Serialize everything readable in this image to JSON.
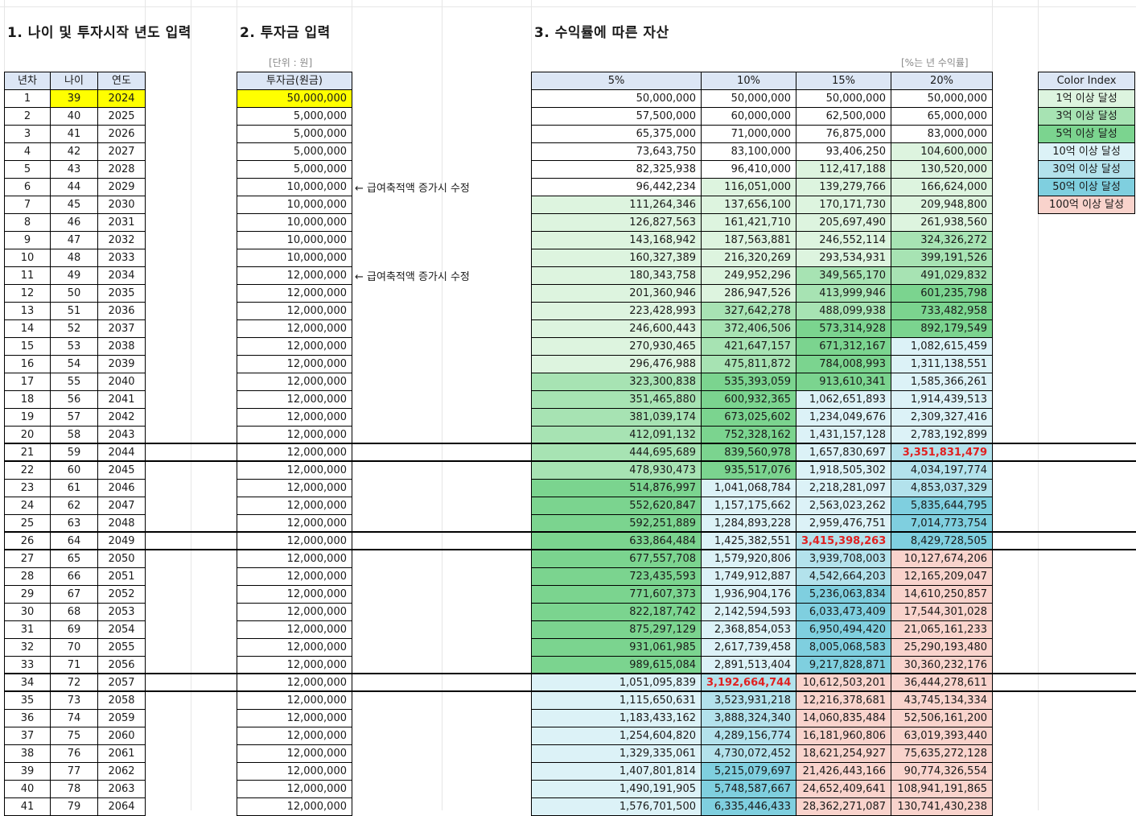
{
  "sections": {
    "s1_title": "1. 나이 및 투자시작 년도 입력",
    "s2_title": "2. 투자금 입력",
    "s3_title": "3. 수익률에 따른 자산",
    "s2_unit": "[단위 : 원]",
    "s3_unit": "[%는 년 수익률]"
  },
  "headers": {
    "year_no": "년차",
    "age": "나이",
    "year": "연도",
    "investment": "투자금(원금)",
    "rates": [
      "5%",
      "10%",
      "15%",
      "20%"
    ]
  },
  "note_text": "← 급여축적액 증가시 수정",
  "legend": {
    "title": "Color Index",
    "items": [
      {
        "label": "1억 이상 달성",
        "color": "#ddf4df"
      },
      {
        "label": "3억 이상 달성",
        "color": "#a7e3b3"
      },
      {
        "label": "5억 이상 달성",
        "color": "#7bd48f"
      },
      {
        "label": "10억 이상 달성",
        "color": "#dcf2f7"
      },
      {
        "label": "30억 이상 달성",
        "color": "#b3e2ec"
      },
      {
        "label": "50억 이상 달성",
        "color": "#7fcfdf"
      },
      {
        "label": "100억 이상 달성",
        "color": "#f9d3cc"
      }
    ]
  },
  "rows": [
    {
      "n": "1",
      "age": "39",
      "year": "2024",
      "inv": "50,000,000",
      "v": [
        "50,000,000",
        "50,000,000",
        "50,000,000",
        "50,000,000"
      ]
    },
    {
      "n": "2",
      "age": "40",
      "year": "2025",
      "inv": "5,000,000",
      "v": [
        "57,500,000",
        "60,000,000",
        "62,500,000",
        "65,000,000"
      ]
    },
    {
      "n": "3",
      "age": "41",
      "year": "2026",
      "inv": "5,000,000",
      "v": [
        "65,375,000",
        "71,000,000",
        "76,875,000",
        "83,000,000"
      ]
    },
    {
      "n": "4",
      "age": "42",
      "year": "2027",
      "inv": "5,000,000",
      "v": [
        "73,643,750",
        "83,100,000",
        "93,406,250",
        "104,600,000"
      ]
    },
    {
      "n": "5",
      "age": "43",
      "year": "2028",
      "inv": "5,000,000",
      "v": [
        "82,325,938",
        "96,410,000",
        "112,417,188",
        "130,520,000"
      ]
    },
    {
      "n": "6",
      "age": "44",
      "year": "2029",
      "inv": "10,000,000",
      "v": [
        "96,442,234",
        "116,051,000",
        "139,279,766",
        "166,624,000"
      ]
    },
    {
      "n": "7",
      "age": "45",
      "year": "2030",
      "inv": "10,000,000",
      "v": [
        "111,264,346",
        "137,656,100",
        "170,171,730",
        "209,948,800"
      ]
    },
    {
      "n": "8",
      "age": "46",
      "year": "2031",
      "inv": "10,000,000",
      "v": [
        "126,827,563",
        "161,421,710",
        "205,697,490",
        "261,938,560"
      ]
    },
    {
      "n": "9",
      "age": "47",
      "year": "2032",
      "inv": "10,000,000",
      "v": [
        "143,168,942",
        "187,563,881",
        "246,552,114",
        "324,326,272"
      ]
    },
    {
      "n": "10",
      "age": "48",
      "year": "2033",
      "inv": "10,000,000",
      "v": [
        "160,327,389",
        "216,320,269",
        "293,534,931",
        "399,191,526"
      ]
    },
    {
      "n": "11",
      "age": "49",
      "year": "2034",
      "inv": "12,000,000",
      "v": [
        "180,343,758",
        "249,952,296",
        "349,565,170",
        "491,029,832"
      ]
    },
    {
      "n": "12",
      "age": "50",
      "year": "2035",
      "inv": "12,000,000",
      "v": [
        "201,360,946",
        "286,947,526",
        "413,999,946",
        "601,235,798"
      ]
    },
    {
      "n": "13",
      "age": "51",
      "year": "2036",
      "inv": "12,000,000",
      "v": [
        "223,428,993",
        "327,642,278",
        "488,099,938",
        "733,482,958"
      ]
    },
    {
      "n": "14",
      "age": "52",
      "year": "2037",
      "inv": "12,000,000",
      "v": [
        "246,600,443",
        "372,406,506",
        "573,314,928",
        "892,179,549"
      ]
    },
    {
      "n": "15",
      "age": "53",
      "year": "2038",
      "inv": "12,000,000",
      "v": [
        "270,930,465",
        "421,647,157",
        "671,312,167",
        "1,082,615,459"
      ]
    },
    {
      "n": "16",
      "age": "54",
      "year": "2039",
      "inv": "12,000,000",
      "v": [
        "296,476,988",
        "475,811,872",
        "784,008,993",
        "1,311,138,551"
      ]
    },
    {
      "n": "17",
      "age": "55",
      "year": "2040",
      "inv": "12,000,000",
      "v": [
        "323,300,838",
        "535,393,059",
        "913,610,341",
        "1,585,366,261"
      ]
    },
    {
      "n": "18",
      "age": "56",
      "year": "2041",
      "inv": "12,000,000",
      "v": [
        "351,465,880",
        "600,932,365",
        "1,062,651,893",
        "1,914,439,513"
      ]
    },
    {
      "n": "19",
      "age": "57",
      "year": "2042",
      "inv": "12,000,000",
      "v": [
        "381,039,174",
        "673,025,602",
        "1,234,049,676",
        "2,309,327,416"
      ]
    },
    {
      "n": "20",
      "age": "58",
      "year": "2043",
      "inv": "12,000,000",
      "v": [
        "412,091,132",
        "752,328,162",
        "1,431,157,128",
        "2,783,192,899"
      ]
    },
    {
      "n": "21",
      "age": "59",
      "year": "2044",
      "inv": "12,000,000",
      "v": [
        "444,695,689",
        "839,560,978",
        "1,657,830,697",
        "3,351,831,479"
      ]
    },
    {
      "n": "22",
      "age": "60",
      "year": "2045",
      "inv": "12,000,000",
      "v": [
        "478,930,473",
        "935,517,076",
        "1,918,505,302",
        "4,034,197,774"
      ]
    },
    {
      "n": "23",
      "age": "61",
      "year": "2046",
      "inv": "12,000,000",
      "v": [
        "514,876,997",
        "1,041,068,784",
        "2,218,281,097",
        "4,853,037,329"
      ]
    },
    {
      "n": "24",
      "age": "62",
      "year": "2047",
      "inv": "12,000,000",
      "v": [
        "552,620,847",
        "1,157,175,662",
        "2,563,023,262",
        "5,835,644,795"
      ]
    },
    {
      "n": "25",
      "age": "63",
      "year": "2048",
      "inv": "12,000,000",
      "v": [
        "592,251,889",
        "1,284,893,228",
        "2,959,476,751",
        "7,014,773,754"
      ]
    },
    {
      "n": "26",
      "age": "64",
      "year": "2049",
      "inv": "12,000,000",
      "v": [
        "633,864,484",
        "1,425,382,551",
        "3,415,398,263",
        "8,429,728,505"
      ]
    },
    {
      "n": "27",
      "age": "65",
      "year": "2050",
      "inv": "12,000,000",
      "v": [
        "677,557,708",
        "1,579,920,806",
        "3,939,708,003",
        "10,127,674,206"
      ]
    },
    {
      "n": "28",
      "age": "66",
      "year": "2051",
      "inv": "12,000,000",
      "v": [
        "723,435,593",
        "1,749,912,887",
        "4,542,664,203",
        "12,165,209,047"
      ]
    },
    {
      "n": "29",
      "age": "67",
      "year": "2052",
      "inv": "12,000,000",
      "v": [
        "771,607,373",
        "1,936,904,176",
        "5,236,063,834",
        "14,610,250,857"
      ]
    },
    {
      "n": "30",
      "age": "68",
      "year": "2053",
      "inv": "12,000,000",
      "v": [
        "822,187,742",
        "2,142,594,593",
        "6,033,473,409",
        "17,544,301,028"
      ]
    },
    {
      "n": "31",
      "age": "69",
      "year": "2054",
      "inv": "12,000,000",
      "v": [
        "875,297,129",
        "2,368,854,053",
        "6,950,494,420",
        "21,065,161,233"
      ]
    },
    {
      "n": "32",
      "age": "70",
      "year": "2055",
      "inv": "12,000,000",
      "v": [
        "931,061,985",
        "2,617,739,458",
        "8,005,068,583",
        "25,290,193,480"
      ]
    },
    {
      "n": "33",
      "age": "71",
      "year": "2056",
      "inv": "12,000,000",
      "v": [
        "989,615,084",
        "2,891,513,404",
        "9,217,828,871",
        "30,360,232,176"
      ]
    },
    {
      "n": "34",
      "age": "72",
      "year": "2057",
      "inv": "12,000,000",
      "v": [
        "1,051,095,839",
        "3,192,664,744",
        "10,612,503,201",
        "36,444,278,611"
      ]
    },
    {
      "n": "35",
      "age": "73",
      "year": "2058",
      "inv": "12,000,000",
      "v": [
        "1,115,650,631",
        "3,523,931,218",
        "12,216,378,681",
        "43,745,134,334"
      ]
    },
    {
      "n": "36",
      "age": "74",
      "year": "2059",
      "inv": "12,000,000",
      "v": [
        "1,183,433,162",
        "3,888,324,340",
        "14,060,835,484",
        "52,506,161,200"
      ]
    },
    {
      "n": "37",
      "age": "75",
      "year": "2060",
      "inv": "12,000,000",
      "v": [
        "1,254,604,820",
        "4,289,156,774",
        "16,181,960,806",
        "63,019,393,440"
      ]
    },
    {
      "n": "38",
      "age": "76",
      "year": "2061",
      "inv": "12,000,000",
      "v": [
        "1,329,335,061",
        "4,730,072,452",
        "18,621,254,927",
        "75,635,272,128"
      ]
    },
    {
      "n": "39",
      "age": "77",
      "year": "2062",
      "inv": "12,000,000",
      "v": [
        "1,407,801,814",
        "5,215,079,697",
        "21,426,443,166",
        "90,774,326,554"
      ]
    },
    {
      "n": "40",
      "age": "78",
      "year": "2063",
      "inv": "12,000,000",
      "v": [
        "1,490,191,905",
        "5,748,587,667",
        "24,652,409,641",
        "108,941,191,865"
      ]
    },
    {
      "n": "41",
      "age": "79",
      "year": "2064",
      "inv": "12,000,000",
      "v": [
        "1,576,701,500",
        "6,335,446,433",
        "28,362,271,087",
        "130,741,430,238"
      ]
    }
  ],
  "highlights": [
    {
      "row": "21",
      "col": 3
    },
    {
      "row": "26",
      "col": 2
    },
    {
      "row": "34",
      "col": 1
    }
  ],
  "note_rows": [
    "6",
    "11"
  ],
  "separator_rows": [
    "21",
    "26",
    "34"
  ]
}
